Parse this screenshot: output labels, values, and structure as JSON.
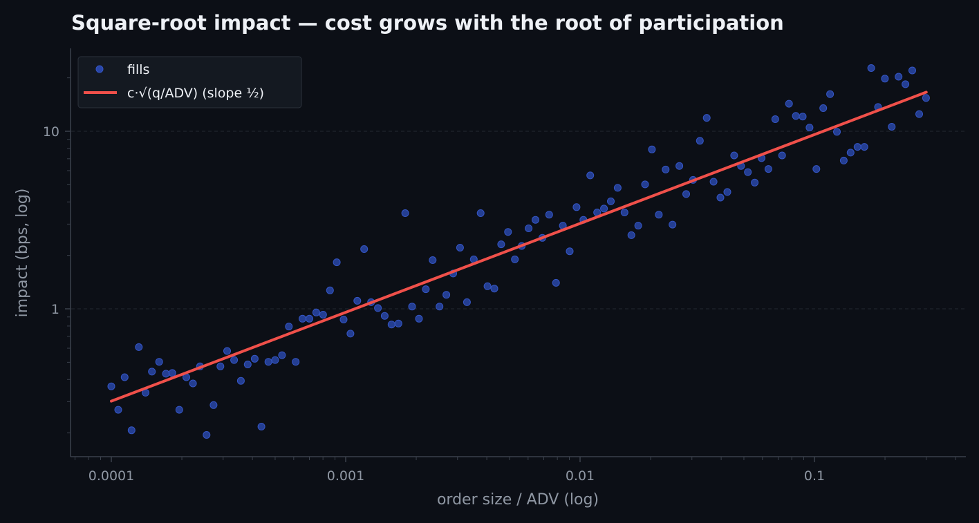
{
  "chart_data": {
    "type": "scatter",
    "title": "Square-root impact — cost grows with the root of participation",
    "xlabel": "order size / ADV (log)",
    "ylabel": "impact (bps, log)",
    "x_scale": "log",
    "y_scale": "log",
    "xlim": [
      7e-05,
      0.42
    ],
    "ylim": [
      0.16,
      28
    ],
    "x_ticks": [
      {
        "value": 0.0001,
        "label": "0.0001"
      },
      {
        "value": 0.001,
        "label": "0.001"
      },
      {
        "value": 0.01,
        "label": "0.01"
      },
      {
        "value": 0.1,
        "label": "0.1"
      }
    ],
    "y_ticks": [
      {
        "value": 1,
        "label": "1"
      },
      {
        "value": 10,
        "label": "10"
      }
    ],
    "grid": "horizontal dashed at major y ticks",
    "legend": {
      "position": "top-left",
      "entries": [
        {
          "label": "fills",
          "marker": "circle",
          "color": "#2946a8"
        },
        {
          "label": "c·√(q/ADV)   (slope ½)",
          "marker": "line",
          "color": "#f0504a"
        }
      ]
    },
    "series": [
      {
        "name": "fills",
        "kind": "scatter",
        "color": "#2946a8",
        "points": [
          [
            0.0001,
            0.366
          ],
          [
            0.000107,
            0.27
          ],
          [
            0.000114,
            0.412
          ],
          [
            0.000122,
            0.207
          ],
          [
            0.000131,
            0.609
          ],
          [
            0.00014,
            0.337
          ],
          [
            0.000149,
            0.443
          ],
          [
            0.00016,
            0.503
          ],
          [
            0.000171,
            0.431
          ],
          [
            0.000182,
            0.435
          ],
          [
            0.000195,
            0.27
          ],
          [
            0.000209,
            0.412
          ],
          [
            0.000223,
            0.38
          ],
          [
            0.000239,
            0.474
          ],
          [
            0.000255,
            0.195
          ],
          [
            0.000273,
            0.287
          ],
          [
            0.000292,
            0.474
          ],
          [
            0.000312,
            0.579
          ],
          [
            0.000334,
            0.515
          ],
          [
            0.000357,
            0.393
          ],
          [
            0.000382,
            0.486
          ],
          [
            0.000409,
            0.523
          ],
          [
            0.000437,
            0.217
          ],
          [
            0.000468,
            0.503
          ],
          [
            0.0005,
            0.515
          ],
          [
            0.000535,
            0.548
          ],
          [
            0.000572,
            0.795
          ],
          [
            0.000612,
            0.503
          ],
          [
            0.000654,
            0.88
          ],
          [
            0.0007,
            0.88
          ],
          [
            0.000749,
            0.954
          ],
          [
            0.000801,
            0.927
          ],
          [
            0.000857,
            1.27
          ],
          [
            0.000916,
            1.83
          ],
          [
            0.00098,
            0.87
          ],
          [
            0.001048,
            0.725
          ],
          [
            0.001121,
            1.11
          ],
          [
            0.001199,
            2.17
          ],
          [
            0.001283,
            1.09
          ],
          [
            0.001372,
            1.01
          ],
          [
            0.001467,
            0.913
          ],
          [
            0.001569,
            0.816
          ],
          [
            0.001679,
            0.826
          ],
          [
            0.001795,
            3.46
          ],
          [
            0.00192,
            1.03
          ],
          [
            0.002054,
            0.88
          ],
          [
            0.002197,
            1.29
          ],
          [
            0.00235,
            1.88
          ],
          [
            0.002514,
            1.03
          ],
          [
            0.002689,
            1.2
          ],
          [
            0.002876,
            1.58
          ],
          [
            0.003076,
            2.21
          ],
          [
            0.003291,
            1.09
          ],
          [
            0.00352,
            1.9
          ],
          [
            0.003765,
            3.46
          ],
          [
            0.004027,
            1.34
          ],
          [
            0.004307,
            1.3
          ],
          [
            0.004607,
            2.31
          ],
          [
            0.004928,
            2.71
          ],
          [
            0.005271,
            1.9
          ],
          [
            0.005638,
            2.26
          ],
          [
            0.006031,
            2.84
          ],
          [
            0.006451,
            3.17
          ],
          [
            0.0069,
            2.51
          ],
          [
            0.00738,
            3.39
          ],
          [
            0.007894,
            1.4
          ],
          [
            0.008444,
            2.94
          ],
          [
            0.009032,
            2.11
          ],
          [
            0.009661,
            3.74
          ],
          [
            0.010333,
            3.17
          ],
          [
            0.011053,
            5.64
          ],
          [
            0.011823,
            3.49
          ],
          [
            0.012646,
            3.67
          ],
          [
            0.013527,
            4.03
          ],
          [
            0.014469,
            4.8
          ],
          [
            0.015476,
            3.49
          ],
          [
            0.016554,
            2.6
          ],
          [
            0.017707,
            2.94
          ],
          [
            0.01894,
            5.02
          ],
          [
            0.020259,
            7.9
          ],
          [
            0.02167,
            3.39
          ],
          [
            0.023179,
            6.09
          ],
          [
            0.024793,
            2.98
          ],
          [
            0.026519,
            6.38
          ],
          [
            0.028366,
            4.43
          ],
          [
            0.030341,
            5.32
          ],
          [
            0.032454,
            8.84
          ],
          [
            0.034714,
            11.9
          ],
          [
            0.037131,
            5.2
          ],
          [
            0.039716,
            4.23
          ],
          [
            0.042482,
            4.55
          ],
          [
            0.04544,
            7.31
          ],
          [
            0.048604,
            6.38
          ],
          [
            0.051989,
            5.89
          ],
          [
            0.055609,
            5.14
          ],
          [
            0.059481,
            7.06
          ],
          [
            0.063623,
            6.13
          ],
          [
            0.068053,
            11.7
          ],
          [
            0.072792,
            7.31
          ],
          [
            0.07786,
            14.3
          ],
          [
            0.083282,
            12.2
          ],
          [
            0.08908,
            12.1
          ],
          [
            0.095283,
            10.5
          ],
          [
            0.101918,
            6.13
          ],
          [
            0.109015,
            13.5
          ],
          [
            0.116605,
            16.2
          ],
          [
            0.124725,
            9.93
          ],
          [
            0.133409,
            6.84
          ],
          [
            0.142699,
            7.58
          ],
          [
            0.152635,
            8.17
          ],
          [
            0.163263,
            8.17
          ],
          [
            0.174631,
            22.7
          ],
          [
            0.186791,
            13.7
          ],
          [
            0.199797,
            19.8
          ],
          [
            0.213709,
            10.6
          ],
          [
            0.22859,
            20.3
          ],
          [
            0.244507,
            18.4
          ],
          [
            0.261532,
            22.0
          ],
          [
            0.279742,
            12.5
          ],
          [
            0.299221,
            15.4
          ]
        ]
      },
      {
        "name": "c·√(q/ADV)   (slope ½)",
        "kind": "line",
        "color": "#f0504a",
        "points": [
          [
            0.0001,
            0.302
          ],
          [
            0.3,
            16.6
          ]
        ]
      }
    ]
  }
}
